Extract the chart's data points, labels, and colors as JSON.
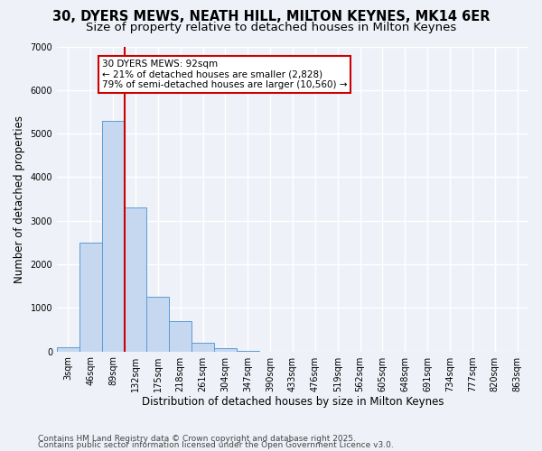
{
  "title_line1": "30, DYERS MEWS, NEATH HILL, MILTON KEYNES, MK14 6ER",
  "title_line2": "Size of property relative to detached houses in Milton Keynes",
  "xlabel": "Distribution of detached houses by size in Milton Keynes",
  "ylabel": "Number of detached properties",
  "categories": [
    "3sqm",
    "46sqm",
    "89sqm",
    "132sqm",
    "175sqm",
    "218sqm",
    "261sqm",
    "304sqm",
    "347sqm",
    "390sqm",
    "433sqm",
    "476sqm",
    "519sqm",
    "562sqm",
    "605sqm",
    "648sqm",
    "691sqm",
    "734sqm",
    "777sqm",
    "820sqm",
    "863sqm"
  ],
  "values": [
    100,
    2500,
    5300,
    3300,
    1250,
    700,
    200,
    80,
    15,
    0,
    0,
    0,
    0,
    0,
    0,
    0,
    0,
    0,
    0,
    0,
    0
  ],
  "bar_color": "#c5d8f0",
  "bar_edge_color": "#5b9bd5",
  "red_line_color": "#cc0000",
  "annotation_text": "30 DYERS MEWS: 92sqm\n← 21% of detached houses are smaller (2,828)\n79% of semi-detached houses are larger (10,560) →",
  "annotation_box_color": "#ffffff",
  "annotation_box_edge": "#cc0000",
  "ylim": [
    0,
    7000
  ],
  "yticks": [
    0,
    1000,
    2000,
    3000,
    4000,
    5000,
    6000,
    7000
  ],
  "background_color": "#eef2f8",
  "grid_color": "#ffffff",
  "footer_line1": "Contains HM Land Registry data © Crown copyright and database right 2025.",
  "footer_line2": "Contains public sector information licensed under the Open Government Licence v3.0.",
  "title_fontsize": 10.5,
  "subtitle_fontsize": 9.5,
  "axis_label_fontsize": 8.5,
  "tick_fontsize": 7,
  "annotation_fontsize": 7.5,
  "footer_fontsize": 6.5
}
